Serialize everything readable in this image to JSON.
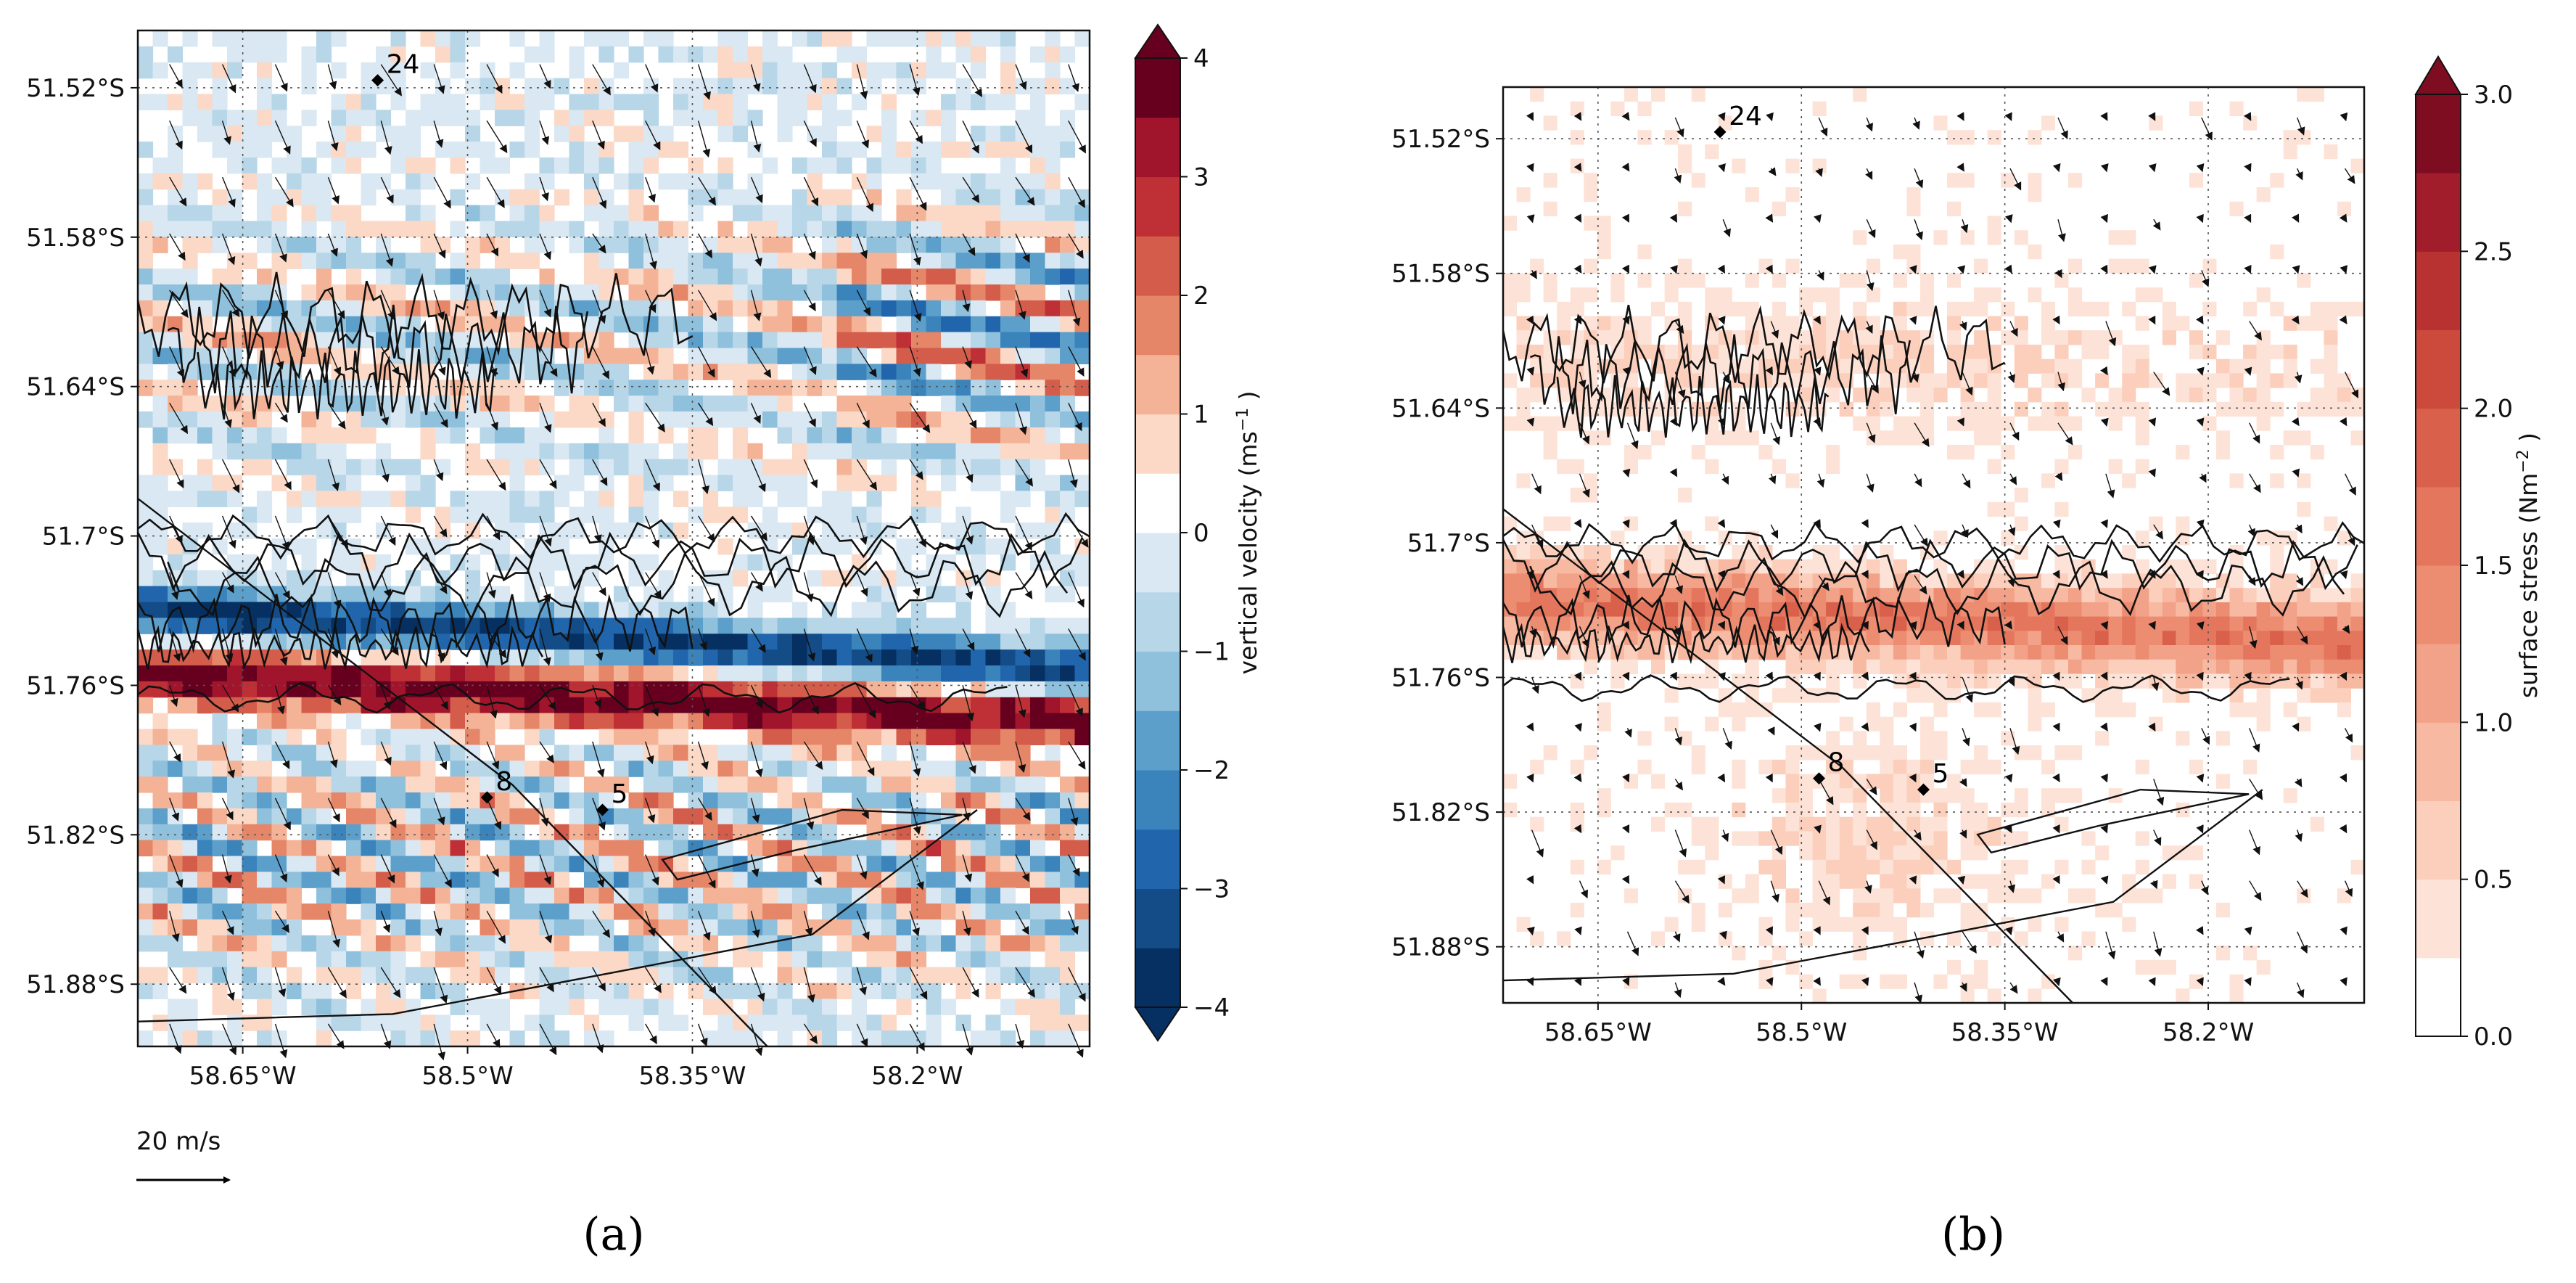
{
  "chart_data": [
    {
      "type": "heatmap",
      "panel_label": "(a)",
      "field": "vertical velocity",
      "xlabel": "",
      "ylabel": "",
      "x_ticks": [
        "58.65°W",
        "58.5°W",
        "58.35°W",
        "58.2°W"
      ],
      "x_tick_values": [
        -58.65,
        -58.5,
        -58.35,
        -58.2
      ],
      "y_ticks": [
        "51.52°S",
        "51.58°S",
        "51.64°S",
        "51.7°S",
        "51.76°S",
        "51.82°S",
        "51.88°S"
      ],
      "y_tick_values": [
        -51.52,
        -51.58,
        -51.64,
        -51.7,
        -51.76,
        -51.82,
        -51.88
      ],
      "xlim": [
        -58.72,
        -58.085
      ],
      "ylim": [
        -51.905,
        -51.497
      ],
      "grid": true,
      "colorbar": {
        "label": "vertical velocity (ms",
        "label_exp": "−1",
        "label_end": ")",
        "ticks": [
          "4",
          "3",
          "2",
          "1",
          "0",
          "−1",
          "−2",
          "−3",
          "−4"
        ],
        "tick_values": [
          4,
          3,
          2,
          1,
          0,
          -1,
          -2,
          -3,
          -4
        ],
        "range": [
          -4,
          4
        ],
        "levels": 16,
        "extend": "both",
        "colors": [
          "#053061",
          "#134c87",
          "#2166ac",
          "#3a84bb",
          "#5c9fcb",
          "#8fc0dc",
          "#b7d6e8",
          "#d9e8f2",
          "#ffffff",
          "#fbd9c6",
          "#f4b397",
          "#e68668",
          "#d45c4b",
          "#bf3036",
          "#a1152c",
          "#67001f"
        ]
      },
      "wind_vector_key": "20 m/s",
      "stations": [
        {
          "name": "24",
          "lon": -58.56,
          "lat": -51.517
        },
        {
          "name": "8",
          "lon": -58.487,
          "lat": -51.805
        },
        {
          "name": "5",
          "lon": -58.41,
          "lat": -51.81
        }
      ]
    },
    {
      "type": "heatmap",
      "panel_label": "(b)",
      "field": "surface stress",
      "xlabel": "",
      "ylabel": "",
      "x_ticks": [
        "58.65°W",
        "58.5°W",
        "58.35°W",
        "58.2°W"
      ],
      "x_tick_values": [
        -58.65,
        -58.5,
        -58.35,
        -58.2
      ],
      "y_ticks": [
        "51.52°S",
        "51.58°S",
        "51.64°S",
        "51.7°S",
        "51.76°S",
        "51.82°S",
        "51.88°S"
      ],
      "y_tick_values": [
        -51.52,
        -51.58,
        -51.64,
        -51.7,
        -51.76,
        -51.82,
        -51.88
      ],
      "xlim": [
        -58.72,
        -58.085
      ],
      "ylim": [
        -51.905,
        -51.497
      ],
      "grid": true,
      "colorbar": {
        "label": "surface stress (Nm",
        "label_exp": "−2",
        "label_end": ")",
        "ticks": [
          "3.0",
          "2.5",
          "2.0",
          "1.5",
          "1.0",
          "0.5",
          "0.0"
        ],
        "tick_values": [
          3.0,
          2.5,
          2.0,
          1.5,
          1.0,
          0.5,
          0.0
        ],
        "range": [
          0,
          3
        ],
        "levels": 12,
        "extend": "max",
        "colors": [
          "#ffffff",
          "#fde3d7",
          "#fbcfbc",
          "#f7b9a1",
          "#f2a288",
          "#ec8d72",
          "#e4765d",
          "#d9604b",
          "#cb4a3c",
          "#b93232",
          "#a21d2b",
          "#7f0d21"
        ]
      },
      "stations": [
        {
          "name": "24",
          "lon": -58.56,
          "lat": -51.517
        },
        {
          "name": "8",
          "lon": -58.487,
          "lat": -51.805
        },
        {
          "name": "5",
          "lon": -58.41,
          "lat": -51.81
        }
      ]
    }
  ]
}
